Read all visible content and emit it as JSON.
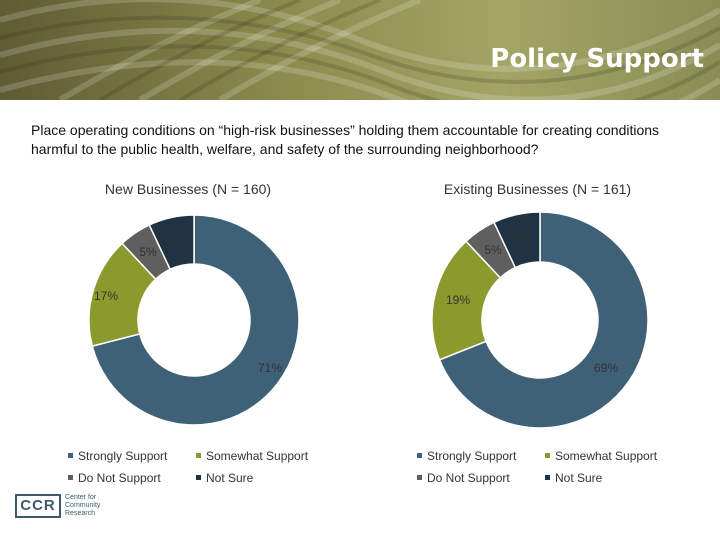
{
  "header": {
    "title": "Policy Support"
  },
  "question": "Place operating conditions on “high-risk businesses” holding them accountable for creating conditions harmful to the public health, welfare, and safety of the surrounding neighborhood?",
  "colors": {
    "strongly": "#3f6178",
    "somewhat": "#8b9a2d",
    "do_not": "#5f5f5f",
    "not_sure": "#1f3342"
  },
  "chart_data": [
    {
      "type": "pie",
      "title": "New Businesses (N = 160)",
      "slices": [
        {
          "label": "Strongly Support",
          "value": 71,
          "text": "71%"
        },
        {
          "label": "Somewhat Support",
          "value": 17,
          "text": "17%"
        },
        {
          "label": "Do Not Support",
          "value": 5,
          "text": "5%"
        },
        {
          "label": "Not Sure",
          "value": 7,
          "text": "7%"
        }
      ],
      "legend": [
        "Strongly Support",
        "Somewhat Support",
        "Do Not Support",
        "Not Sure"
      ]
    },
    {
      "type": "pie",
      "title": "Existing Businesses (N = 161)",
      "slices": [
        {
          "label": "Strongly Support",
          "value": 69,
          "text": "69%"
        },
        {
          "label": "Somewhat Support",
          "value": 19,
          "text": "19%"
        },
        {
          "label": "Do Not Support",
          "value": 5,
          "text": "5%"
        },
        {
          "label": "Not Sure",
          "value": 7,
          "text": "7%"
        }
      ],
      "legend": [
        "Strongly Support",
        "Somewhat Support",
        "Do Not Support",
        "Not Sure"
      ]
    }
  ],
  "logo": {
    "abbr": "CCR",
    "name_lines": [
      "Center for",
      "Community",
      "Research"
    ]
  }
}
